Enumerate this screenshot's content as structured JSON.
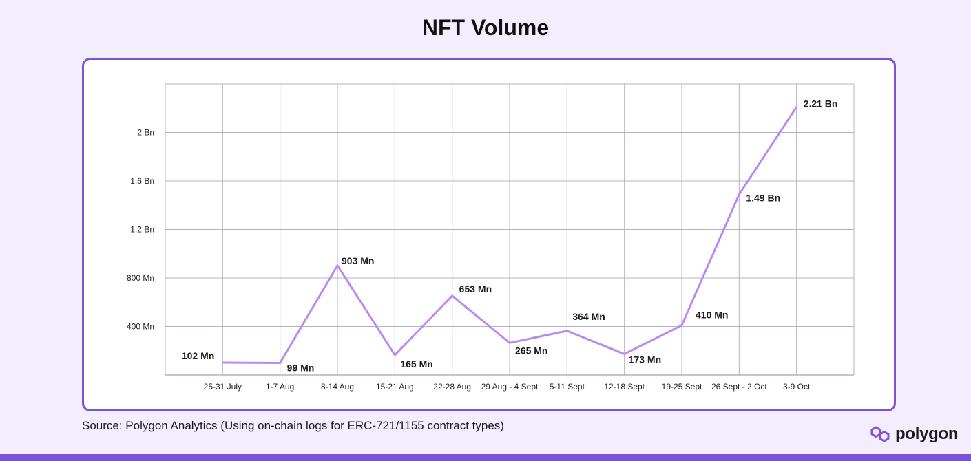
{
  "page": {
    "title": "NFT Volume",
    "source": "Source: Polygon Analytics (Using on-chain logs for ERC-721/1155 contract types)",
    "brand": "polygon",
    "accent_color": "#7d52d6",
    "line_color": "#b98af2"
  },
  "chart_data": {
    "type": "line",
    "title": "NFT Volume",
    "xlabel": "",
    "ylabel": "",
    "categories": [
      "25-31 July",
      "1-7 Aug",
      "8-14 Aug",
      "15-21 Aug",
      "22-28 Aug",
      "29 Aug - 4 Sept",
      "5-11 Sept",
      "12-18 Sept",
      "19-25 Sept",
      "26 Sept - 2 Oct",
      "3-9 Oct"
    ],
    "series": [
      {
        "values": [
          102,
          99,
          903,
          165,
          653,
          265,
          364,
          173,
          410,
          1490,
          2210
        ],
        "labels": [
          "102 Mn",
          "99 Mn",
          "903 Mn",
          "165 Mn",
          "653 Mn",
          "265 Mn",
          "364 Mn",
          "173 Mn",
          "410 Mn",
          "1.49 Bn",
          "2.21 Bn"
        ]
      }
    ],
    "y_ticks": [
      400,
      800,
      1200,
      1600,
      2000
    ],
    "y_tick_labels": [
      "400 Mn",
      "800 Mn",
      "1.2 Bn",
      "1.6 Bn",
      "2 Bn"
    ],
    "ylim": [
      0,
      2400
    ],
    "grid": true,
    "legend": "none"
  }
}
